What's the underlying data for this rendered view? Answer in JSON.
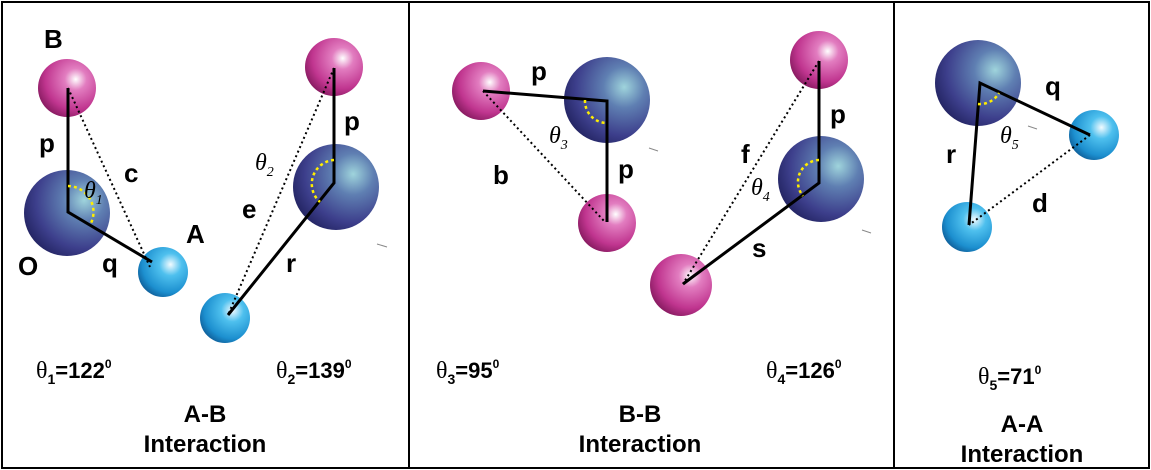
{
  "colors": {
    "atom_B": "#c0358f",
    "atom_O": "#4a4f96",
    "atom_A": "#1c8fcf",
    "angle_marker": "#ffee00"
  },
  "panels": {
    "ab": {
      "labels": {
        "B": "B",
        "O": "O",
        "A": "A",
        "p1": "p",
        "q": "q",
        "c": "c",
        "p2": "p",
        "e": "e",
        "r": "r"
      },
      "theta1": {
        "sym": "θ",
        "sub": "1"
      },
      "theta2": {
        "sym": "θ",
        "sub": "2"
      },
      "eq1": {
        "sym": "θ",
        "sub": "1",
        "value": "=122",
        "sup": "0"
      },
      "eq2": {
        "sym": "θ",
        "sub": "2",
        "value": "=139",
        "sup": "0"
      },
      "caption_line1": "A-B",
      "caption_line2": "Interaction"
    },
    "bb": {
      "labels": {
        "p_top": "p",
        "p_mid": "p",
        "b": "b",
        "p_right": "p",
        "f": "f",
        "s": "s"
      },
      "theta3": {
        "sym": "θ",
        "sub": "3"
      },
      "theta4": {
        "sym": "θ",
        "sub": "4"
      },
      "eq3": {
        "sym": "θ",
        "sub": "3",
        "value": "=95",
        "sup": "0"
      },
      "eq4": {
        "sym": "θ",
        "sub": "4",
        "value": "=126",
        "sup": "0"
      },
      "caption_line1": "B-B",
      "caption_line2": "Interaction"
    },
    "aa": {
      "labels": {
        "q": "q",
        "r": "r",
        "d": "d"
      },
      "theta5": {
        "sym": "θ",
        "sub": "5"
      },
      "eq5": {
        "sym": "θ",
        "sub": "5",
        "value": "=71",
        "sup": "0"
      },
      "caption_line1": "A-A",
      "caption_line2": "Interaction"
    }
  }
}
